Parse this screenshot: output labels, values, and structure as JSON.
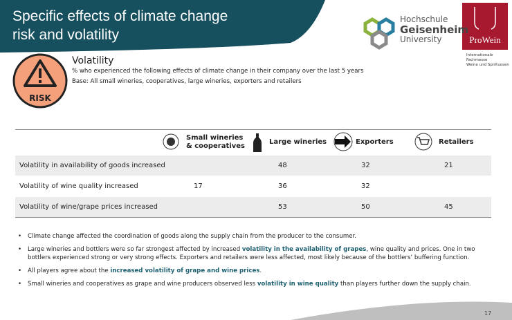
{
  "header": {
    "title_lines": [
      "Specific effects of climate change",
      "risk and volatility"
    ]
  },
  "logos": {
    "geisenheim": [
      "Hochschule",
      "Geisenheim",
      "University"
    ],
    "prowein": {
      "name": "ProWein",
      "tagline": [
        "Internationale Fachmesse",
        "Weine und Spirituosen"
      ]
    }
  },
  "risk_icon": "RISK",
  "section": {
    "title": "Volatility",
    "subtitle": "% who experienced the following effects of climate change in their company over the last 5 years",
    "base": "Base: All small wineries, cooperatives, large wineries, exporters and retailers"
  },
  "table": {
    "columns": [
      [
        "Small wineries",
        "& cooperatives"
      ],
      [
        "Large wineries"
      ],
      [
        "Exporters"
      ],
      [
        "Retailers"
      ]
    ],
    "rows": [
      {
        "label": "Volatility in availability of goods increased",
        "values": [
          null,
          48,
          32,
          21
        ],
        "shaded": true
      },
      {
        "label": "Volatility of wine quality increased",
        "values": [
          17,
          36,
          32,
          null
        ],
        "shaded": false
      },
      {
        "label": "Volatility of wine/grape prices increased",
        "values": [
          null,
          53,
          50,
          45
        ],
        "shaded": true
      }
    ]
  },
  "bullets": [
    [
      {
        "text": "Climate change affected the coordination of goods along the supply chain from the producer to the consumer."
      }
    ],
    [
      {
        "text": "Large wineries and bottlers were so far strongest affected by increased "
      },
      {
        "text": "volatility in the availability of grapes",
        "highlight": true
      },
      {
        "text": ", wine quality and prices. One in two bottlers experienced strong or very strong effects. Exporters and retailers were less affected, most likely because of the bottlers’ buffering function."
      }
    ],
    [
      {
        "text": "All players agree about the "
      },
      {
        "text": "increased volatility of grape and wine prices",
        "highlight": true
      },
      {
        "text": "."
      }
    ],
    [
      {
        "text": "Small wineries and cooperatives as grape and wine producers observed less "
      },
      {
        "text": "volatility in wine quality",
        "highlight": true
      },
      {
        "text": " than players further down the supply chain."
      }
    ]
  ],
  "page_number": "17"
}
